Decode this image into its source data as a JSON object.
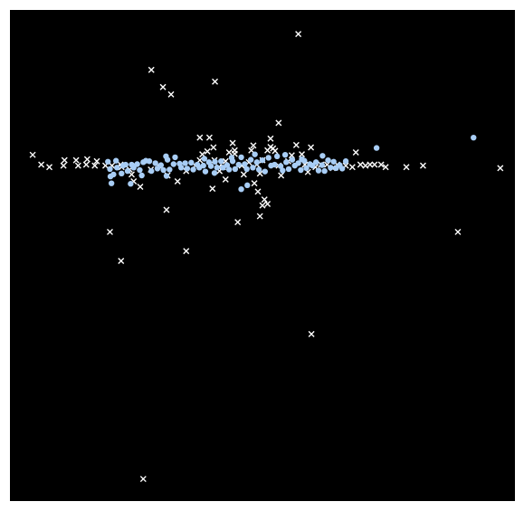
{
  "chart_data": {
    "type": "scatter",
    "title": "",
    "xlabel": "",
    "ylabel": "",
    "grid": false,
    "axes_visible": false,
    "xlim": [
      0,
      100
    ],
    "ylim": [
      0,
      100
    ],
    "background_color": "#000000",
    "series": [
      {
        "marker": "x",
        "color": "#ffffff",
        "points": [
          [
            4.5,
            70.5
          ],
          [
            6.2,
            68.5
          ],
          [
            7.8,
            68.0
          ],
          [
            10.6,
            68.3
          ],
          [
            10.8,
            69.4
          ],
          [
            13.1,
            69.4
          ],
          [
            13.5,
            68.3
          ],
          [
            15.1,
            68.5
          ],
          [
            15.3,
            69.6
          ],
          [
            16.8,
            68.3
          ],
          [
            17.2,
            69.2
          ],
          [
            18.9,
            68.3
          ],
          [
            20.2,
            68.3
          ],
          [
            21.9,
            68.5
          ],
          [
            22.1,
            68.0
          ],
          [
            23.7,
            67.5
          ],
          [
            24.1,
            66.5
          ],
          [
            24.5,
            65.1
          ],
          [
            25.8,
            64.0
          ],
          [
            27.9,
            67.5
          ],
          [
            29.4,
            68.3
          ],
          [
            31.2,
            66.3
          ],
          [
            33.2,
            65.1
          ],
          [
            34.9,
            67.2
          ],
          [
            36.7,
            68.3
          ],
          [
            37.6,
            69.4
          ],
          [
            38.1,
            70.6
          ],
          [
            39.1,
            71.2
          ],
          [
            39.5,
            74.0
          ],
          [
            37.6,
            74.0
          ],
          [
            40.3,
            72.0
          ],
          [
            40.5,
            69.4
          ],
          [
            41.5,
            67.2
          ],
          [
            42.2,
            68.0
          ],
          [
            42.7,
            69.2
          ],
          [
            43.4,
            71.0
          ],
          [
            44.1,
            72.9
          ],
          [
            44.5,
            70.7
          ],
          [
            45.9,
            68.3
          ],
          [
            46.3,
            66.5
          ],
          [
            47.3,
            69.0
          ],
          [
            47.8,
            71.4
          ],
          [
            48.2,
            72.4
          ],
          [
            48.9,
            68.5
          ],
          [
            49.5,
            66.7
          ],
          [
            50.0,
            69.4
          ],
          [
            51.0,
            71.4
          ],
          [
            51.6,
            72.1
          ],
          [
            52.5,
            71.3
          ],
          [
            53.2,
            68.3
          ],
          [
            53.7,
            66.3
          ],
          [
            55.1,
            69.2
          ],
          [
            55.8,
            70.4
          ],
          [
            56.7,
            72.5
          ],
          [
            57.8,
            70.6
          ],
          [
            58.4,
            68.5
          ],
          [
            59.0,
            67.0
          ],
          [
            59.6,
            72.0
          ],
          [
            60.5,
            68.0
          ],
          [
            61.6,
            68.5
          ],
          [
            62.8,
            68.5
          ],
          [
            63.9,
            67.8
          ],
          [
            64.8,
            68.5
          ],
          [
            66.5,
            68.3
          ],
          [
            67.8,
            68.0
          ],
          [
            68.5,
            71.0
          ],
          [
            69.4,
            68.5
          ],
          [
            70.4,
            68.3
          ],
          [
            71.3,
            68.5
          ],
          [
            72.2,
            68.5
          ],
          [
            73.5,
            68.5
          ],
          [
            74.4,
            68.0
          ],
          [
            78.5,
            68.0
          ],
          [
            81.8,
            68.3
          ],
          [
            97.1,
            67.8
          ],
          [
            51.6,
            73.8
          ],
          [
            52.1,
            71.8
          ],
          [
            44.5,
            71.4
          ],
          [
            42.7,
            65.5
          ],
          [
            48.4,
            64.7
          ],
          [
            49.1,
            63.0
          ],
          [
            50.0,
            60.2
          ],
          [
            49.5,
            58.0
          ],
          [
            51.0,
            60.5
          ],
          [
            50.4,
            61.4
          ],
          [
            45.1,
            56.8
          ],
          [
            34.9,
            50.9
          ],
          [
            19.8,
            54.8
          ],
          [
            22.0,
            48.9
          ],
          [
            31.0,
            59.3
          ],
          [
            40.1,
            63.6
          ],
          [
            41.4,
            68.0
          ],
          [
            53.2,
            77.0
          ],
          [
            40.6,
            85.4
          ],
          [
            31.9,
            82.8
          ],
          [
            30.3,
            84.3
          ],
          [
            28.0,
            87.8
          ],
          [
            57.1,
            95.1
          ],
          [
            88.7,
            54.8
          ],
          [
            59.7,
            34.0
          ],
          [
            26.4,
            4.5
          ]
        ]
      },
      {
        "marker": "o",
        "color": "#a8cdf5",
        "points": [
          [
            19.8,
            67.6
          ],
          [
            21.2,
            67.9
          ],
          [
            22.9,
            68.5
          ],
          [
            24.1,
            68.5
          ],
          [
            25.2,
            68.6
          ],
          [
            26.4,
            69.0
          ],
          [
            27.6,
            69.2
          ],
          [
            28.8,
            68.8
          ],
          [
            29.9,
            68.4
          ],
          [
            31.2,
            69.5
          ],
          [
            32.4,
            68.6
          ],
          [
            33.6,
            68.7
          ],
          [
            34.7,
            68.8
          ],
          [
            35.9,
            68.9
          ],
          [
            37.1,
            68.5
          ],
          [
            38.3,
            68.3
          ],
          [
            39.4,
            69.0
          ],
          [
            40.6,
            69.1
          ],
          [
            41.8,
            69.2
          ],
          [
            43.0,
            68.4
          ],
          [
            44.1,
            69.2
          ],
          [
            45.3,
            68.5
          ],
          [
            46.5,
            68.6
          ],
          [
            47.7,
            69.5
          ],
          [
            48.9,
            69.0
          ],
          [
            50.0,
            69.4
          ],
          [
            51.2,
            69.9
          ],
          [
            52.4,
            68.5
          ],
          [
            53.6,
            68.2
          ],
          [
            54.7,
            69.0
          ],
          [
            55.9,
            69.5
          ],
          [
            57.1,
            68.8
          ],
          [
            58.3,
            69.3
          ],
          [
            59.4,
            68.6
          ],
          [
            60.6,
            69.0
          ],
          [
            61.8,
            68.4
          ],
          [
            63.0,
            69.4
          ],
          [
            64.1,
            69.1
          ],
          [
            65.3,
            68.4
          ],
          [
            66.5,
            69.2
          ],
          [
            20.5,
            66.5
          ],
          [
            21.0,
            69.3
          ],
          [
            22.1,
            66.7
          ],
          [
            23.3,
            67.2
          ],
          [
            24.5,
            67.9
          ],
          [
            25.7,
            67.4
          ],
          [
            26.9,
            69.3
          ],
          [
            28.0,
            67.2
          ],
          [
            29.2,
            67.7
          ],
          [
            30.4,
            67.4
          ],
          [
            31.6,
            67.5
          ],
          [
            32.7,
            70.0
          ],
          [
            33.9,
            67.9
          ],
          [
            35.1,
            67.7
          ],
          [
            36.3,
            67.5
          ],
          [
            37.5,
            67.9
          ],
          [
            38.7,
            67.1
          ],
          [
            39.8,
            68.2
          ],
          [
            41.0,
            67.9
          ],
          [
            42.2,
            67.9
          ],
          [
            43.4,
            67.5
          ],
          [
            44.6,
            67.6
          ],
          [
            45.8,
            70.0
          ],
          [
            46.9,
            67.6
          ],
          [
            48.1,
            67.9
          ],
          [
            49.3,
            67.5
          ],
          [
            50.5,
            67.1
          ],
          [
            51.7,
            68.3
          ],
          [
            52.9,
            70.2
          ],
          [
            54.0,
            67.3
          ],
          [
            55.2,
            67.6
          ],
          [
            56.4,
            68.3
          ],
          [
            57.6,
            67.4
          ],
          [
            58.7,
            67.8
          ],
          [
            59.9,
            68.3
          ],
          [
            61.1,
            67.3
          ],
          [
            62.3,
            67.2
          ],
          [
            63.5,
            67.9
          ],
          [
            64.6,
            67.8
          ],
          [
            65.8,
            67.7
          ],
          [
            19.4,
            69.1
          ],
          [
            19.9,
            66.1
          ],
          [
            22.4,
            68.3
          ],
          [
            30.9,
            70.2
          ],
          [
            38.5,
            69.7
          ],
          [
            43.9,
            69.9
          ],
          [
            48.5,
            70.6
          ],
          [
            54.5,
            70.5
          ],
          [
            57.8,
            69.6
          ],
          [
            61.9,
            70.3
          ],
          [
            20.1,
            64.7
          ],
          [
            23.9,
            64.6
          ],
          [
            26.1,
            66.3
          ],
          [
            31.0,
            66.2
          ],
          [
            40.5,
            66.8
          ],
          [
            45.8,
            63.5
          ],
          [
            47.0,
            64.3
          ],
          [
            72.6,
            71.9
          ],
          [
            91.8,
            74.0
          ]
        ]
      }
    ]
  }
}
